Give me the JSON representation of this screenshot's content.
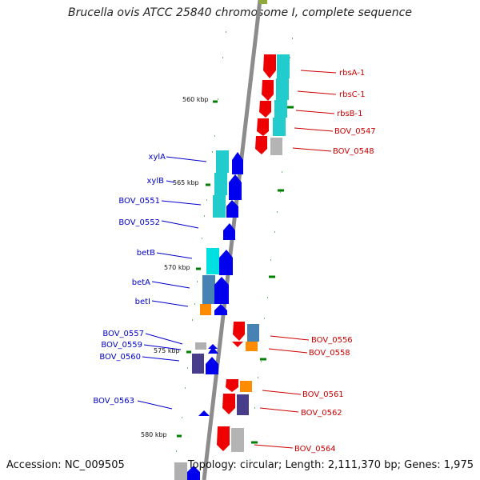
{
  "header": {
    "title": "Brucella ovis ATCC 25840 chromosome I, complete sequence"
  },
  "footer": {
    "accession": "Accession: NC_009505",
    "stats": "Topology: circular; Length: 2,111,370 bp; Genes: 1,975"
  },
  "scale": {
    "ticks": [
      "560 kbp",
      "565 kbp",
      "570 kbp",
      "575 kbp",
      "580 kbp"
    ]
  },
  "colors": {
    "plus_strand_label": "#0000cc",
    "minus_strand_label": "#cc0000",
    "cds_plus": "#0000ee",
    "cds_minus": "#ee0000",
    "cog_cyan": "#22cccc",
    "cog_steel": "#4682b4",
    "cog_orange": "#ff8c00",
    "cog_slate": "#483d8b",
    "cog_gray": "#b0b0b0",
    "backbone": "#8c8c8c",
    "tick_mark": "#008000"
  },
  "genes_left": [
    "xylA",
    "xylB",
    "BOV_0551",
    "BOV_0552",
    "betB",
    "betA",
    "betI",
    "BOV_0557",
    "BOV_0559",
    "BOV_0560",
    "BOV_0563"
  ],
  "genes_right": [
    "rbsA-1",
    "rbsC-1",
    "rbsB-1",
    "BOV_0547",
    "BOV_0548",
    "BOV_0556",
    "BOV_0558",
    "BOV_0561",
    "BOV_0562",
    "BOV_0564"
  ]
}
